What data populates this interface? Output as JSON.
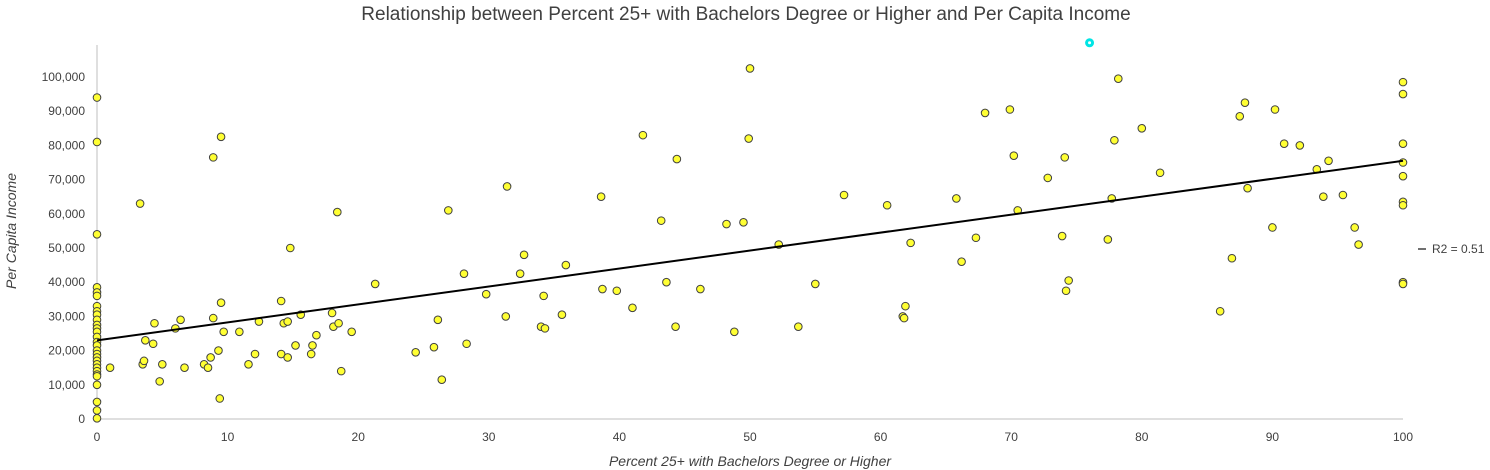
{
  "chart_data": {
    "type": "scatter",
    "title": "Relationship between Percent 25+ with Bachelors Degree or Higher and Per Capita Income",
    "xlabel": "Percent 25+ with Bachelors Degree or Higher",
    "ylabel": "Per Capita Income",
    "xlim": [
      0,
      100
    ],
    "ylim": [
      0,
      105000
    ],
    "x_ticks": [
      "0",
      "10",
      "20",
      "30",
      "40",
      "50",
      "60",
      "70",
      "80",
      "90",
      "100"
    ],
    "y_ticks": [
      "0",
      "10,000",
      "20,000",
      "30,000",
      "40,000",
      "50,000",
      "60,000",
      "70,000",
      "80,000",
      "90,000",
      "100,000"
    ],
    "x_tick_values": [
      0,
      10,
      20,
      30,
      40,
      50,
      60,
      70,
      80,
      90,
      100
    ],
    "y_tick_values": [
      0,
      10000,
      20000,
      30000,
      40000,
      50000,
      60000,
      70000,
      80000,
      90000,
      100000
    ],
    "grid": false,
    "legend": "none",
    "point_color": "#ffff33",
    "point_stroke": "#404040",
    "highlight_color": "#00e5e5",
    "trendline": {
      "type": "linear",
      "x": [
        0,
        100
      ],
      "y": [
        23000,
        75500
      ],
      "label": "R2 = 0.51"
    },
    "highlight_point": {
      "x": 76,
      "y": 110000
    },
    "points": [
      [
        0,
        94000
      ],
      [
        0,
        81000
      ],
      [
        0,
        54000
      ],
      [
        0,
        38500
      ],
      [
        0,
        37000
      ],
      [
        0,
        36000
      ],
      [
        0,
        33000
      ],
      [
        0,
        31500
      ],
      [
        0,
        30500
      ],
      [
        0,
        29000
      ],
      [
        0,
        27500
      ],
      [
        0,
        26500
      ],
      [
        0,
        25500
      ],
      [
        0,
        24000
      ],
      [
        0,
        22500
      ],
      [
        0,
        21500
      ],
      [
        0,
        20000
      ],
      [
        0,
        19000
      ],
      [
        0,
        18000
      ],
      [
        0,
        17000
      ],
      [
        0,
        16000
      ],
      [
        0,
        15000
      ],
      [
        0,
        14000
      ],
      [
        0,
        13000
      ],
      [
        0,
        12500
      ],
      [
        0,
        10000
      ],
      [
        0,
        5000
      ],
      [
        0,
        2500
      ],
      [
        0,
        200
      ],
      [
        1,
        15000
      ],
      [
        3.3,
        63000
      ],
      [
        3.5,
        16000
      ],
      [
        3.6,
        17000
      ],
      [
        3.7,
        23000
      ],
      [
        4.3,
        22000
      ],
      [
        4.4,
        28000
      ],
      [
        4.8,
        11000
      ],
      [
        5,
        16000
      ],
      [
        6,
        26500
      ],
      [
        6.4,
        29000
      ],
      [
        6.7,
        15000
      ],
      [
        8.2,
        16000
      ],
      [
        8.5,
        15000
      ],
      [
        8.7,
        18000
      ],
      [
        8.9,
        29500
      ],
      [
        8.9,
        76500
      ],
      [
        9.3,
        20000
      ],
      [
        9.4,
        6000
      ],
      [
        9.5,
        34000
      ],
      [
        9.5,
        82500
      ],
      [
        9.7,
        25500
      ],
      [
        10.9,
        25500
      ],
      [
        11.6,
        16000
      ],
      [
        12.1,
        19000
      ],
      [
        12.4,
        28500
      ],
      [
        14.1,
        19000
      ],
      [
        14.1,
        34500
      ],
      [
        14.3,
        28000
      ],
      [
        14.6,
        18000
      ],
      [
        14.6,
        28500
      ],
      [
        14.8,
        50000
      ],
      [
        15.2,
        21500
      ],
      [
        15.6,
        30500
      ],
      [
        16.4,
        19000
      ],
      [
        16.5,
        21500
      ],
      [
        16.8,
        24500
      ],
      [
        18,
        31000
      ],
      [
        18.1,
        27000
      ],
      [
        18.4,
        60500
      ],
      [
        18.5,
        28000
      ],
      [
        18.7,
        14000
      ],
      [
        19.5,
        25500
      ],
      [
        21.3,
        39500
      ],
      [
        24.4,
        19500
      ],
      [
        25.8,
        21000
      ],
      [
        26.1,
        29000
      ],
      [
        26.4,
        11500
      ],
      [
        26.9,
        61000
      ],
      [
        28.1,
        42500
      ],
      [
        28.3,
        22000
      ],
      [
        29.8,
        36500
      ],
      [
        31.3,
        30000
      ],
      [
        31.4,
        68000
      ],
      [
        32.4,
        42500
      ],
      [
        32.7,
        48000
      ],
      [
        34,
        27000
      ],
      [
        34.2,
        36000
      ],
      [
        34.3,
        26500
      ],
      [
        35.6,
        30500
      ],
      [
        35.9,
        45000
      ],
      [
        38.6,
        65000
      ],
      [
        38.7,
        38000
      ],
      [
        39.8,
        37500
      ],
      [
        41,
        32500
      ],
      [
        41.8,
        83000
      ],
      [
        43.2,
        58000
      ],
      [
        43.6,
        40000
      ],
      [
        44.3,
        27000
      ],
      [
        44.4,
        76000
      ],
      [
        46.2,
        38000
      ],
      [
        48.2,
        57000
      ],
      [
        48.8,
        25500
      ],
      [
        49.5,
        57500
      ],
      [
        49.9,
        82000
      ],
      [
        50,
        102500
      ],
      [
        52.2,
        51000
      ],
      [
        53.7,
        27000
      ],
      [
        55,
        39500
      ],
      [
        57.2,
        65500
      ],
      [
        60.5,
        62500
      ],
      [
        61.7,
        30000
      ],
      [
        61.8,
        29500
      ],
      [
        61.9,
        33000
      ],
      [
        62.3,
        51500
      ],
      [
        65.8,
        64500
      ],
      [
        66.2,
        46000
      ],
      [
        67.3,
        53000
      ],
      [
        68,
        89500
      ],
      [
        69.9,
        90500
      ],
      [
        70.2,
        77000
      ],
      [
        70.5,
        61000
      ],
      [
        72.8,
        70500
      ],
      [
        73.9,
        53500
      ],
      [
        74.1,
        76500
      ],
      [
        74.2,
        37500
      ],
      [
        74.4,
        40500
      ],
      [
        77.4,
        52500
      ],
      [
        77.7,
        64500
      ],
      [
        77.9,
        81500
      ],
      [
        78.2,
        99500
      ],
      [
        80,
        85000
      ],
      [
        81.4,
        72000
      ],
      [
        86,
        31500
      ],
      [
        86.9,
        47000
      ],
      [
        87.5,
        88500
      ],
      [
        87.9,
        92500
      ],
      [
        88.1,
        67500
      ],
      [
        90,
        56000
      ],
      [
        90.2,
        90500
      ],
      [
        90.9,
        80500
      ],
      [
        92.1,
        80000
      ],
      [
        93.4,
        73000
      ],
      [
        93.9,
        65000
      ],
      [
        94.3,
        75500
      ],
      [
        95.4,
        65500
      ],
      [
        96.3,
        56000
      ],
      [
        96.6,
        51000
      ],
      [
        100,
        98500
      ],
      [
        100,
        95000
      ],
      [
        100,
        80500
      ],
      [
        100,
        75000
      ],
      [
        100,
        71000
      ],
      [
        100,
        63500
      ],
      [
        100,
        62500
      ],
      [
        100,
        40000
      ],
      [
        100,
        39500
      ]
    ]
  }
}
